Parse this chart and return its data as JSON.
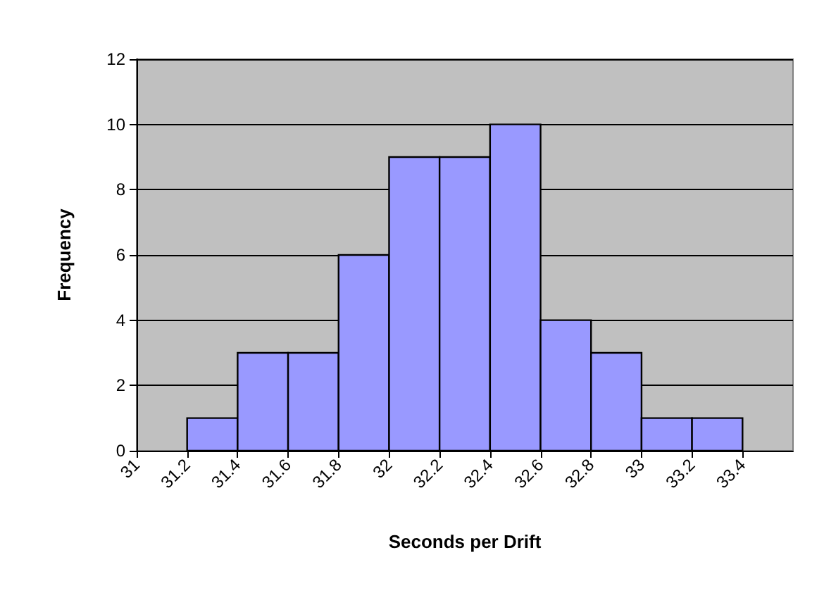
{
  "chart_data": {
    "type": "histogram",
    "bins": [
      31.2,
      31.4,
      31.6,
      31.8,
      32,
      32.2,
      32.4,
      32.6,
      32.8,
      33,
      33.2,
      33.4
    ],
    "values": [
      1,
      3,
      3,
      6,
      9,
      9,
      10,
      4,
      3,
      1,
      1
    ],
    "color": "#9999ff",
    "xlabel": "Seconds per Drift",
    "ylabel": "Frequency",
    "xlim": [
      31,
      33.6
    ],
    "xticks": [
      31,
      31.2,
      31.4,
      31.6,
      31.8,
      32,
      32.2,
      32.4,
      32.6,
      32.8,
      33,
      33.2,
      33.4
    ],
    "ylim": [
      0,
      12
    ],
    "yticks": [
      0,
      2,
      4,
      6,
      8,
      10,
      12
    ],
    "grid": "y"
  }
}
